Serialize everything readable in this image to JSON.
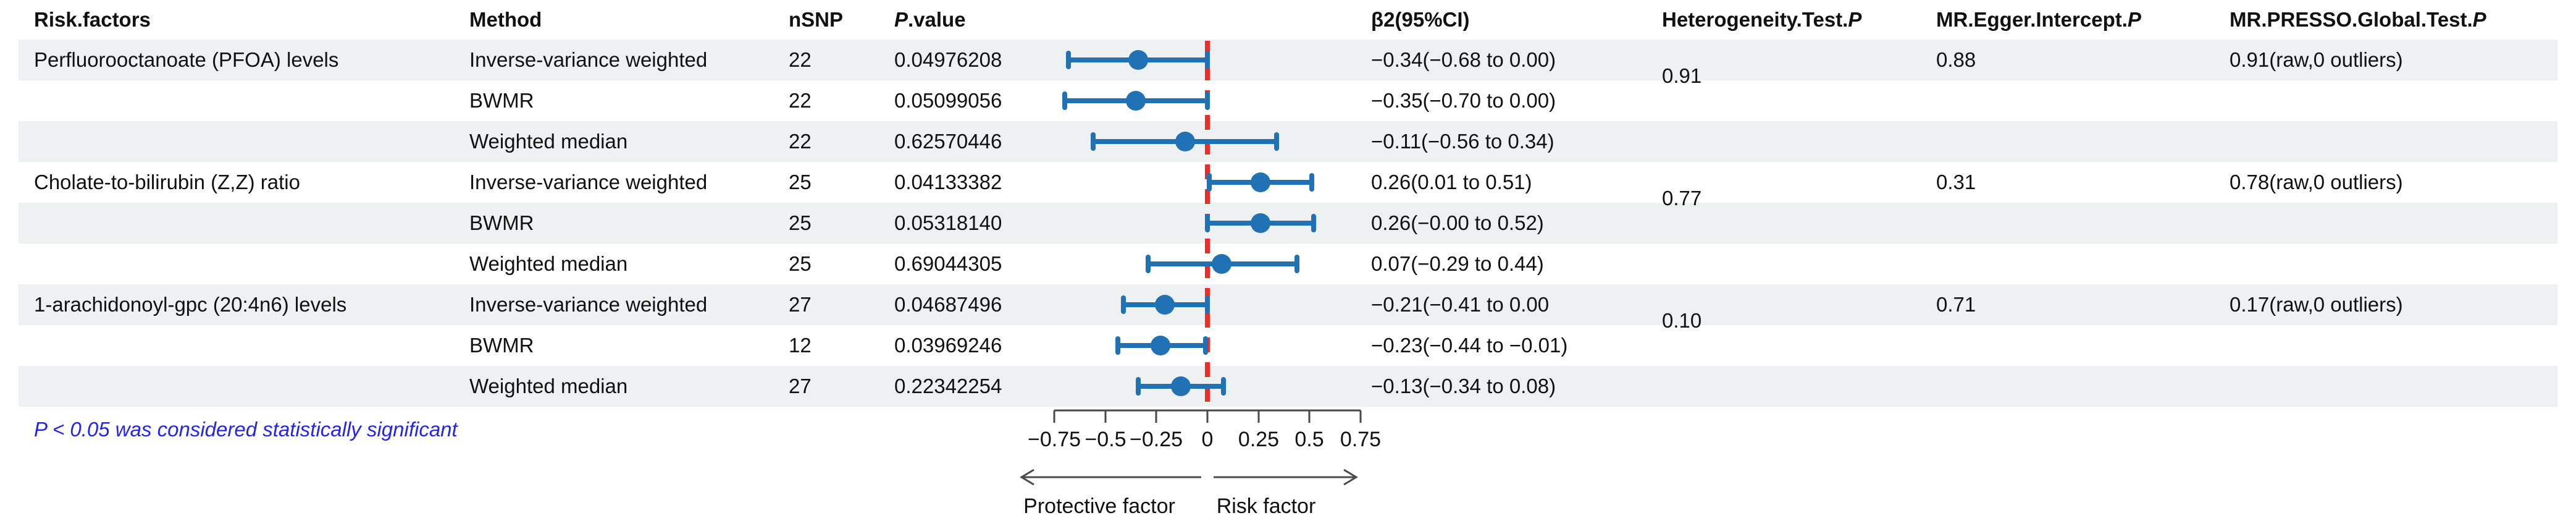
{
  "headers": {
    "risk_factors": "Risk.factors",
    "method": "Method",
    "nsnp": "nSNP",
    "p_value": {
      "italic": "P",
      "rest": ".value"
    },
    "beta_ci": "β2(95%CI)",
    "heterogeneity": {
      "rest": "Heterogeneity.Test.",
      "italic": "P"
    },
    "egger": {
      "rest": "MR.Egger.Intercept.",
      "italic": "P"
    },
    "presso": {
      "rest": "MR.PRESSO.Global.Test.",
      "italic": "P"
    }
  },
  "groups": [
    {
      "risk_factor": "Perfluorooctanoate (PFOA) levels",
      "heterogeneity_p": "0.91",
      "egger_intercept_p": "0.88",
      "presso_global_p": "0.91(raw,0 outliers)",
      "rows": [
        {
          "method": "Inverse-variance weighted",
          "nsnp": "22",
          "p_value": "0.04976208",
          "beta_ci": "−0.34(−0.68 to 0.00)"
        },
        {
          "method": "BWMR",
          "nsnp": "22",
          "p_value": "0.05099056",
          "beta_ci": "−0.35(−0.70 to 0.00)"
        },
        {
          "method": "Weighted median",
          "nsnp": "22",
          "p_value": "0.62570446",
          "beta_ci": "−0.11(−0.56 to 0.34)"
        }
      ]
    },
    {
      "risk_factor": "Cholate-to-bilirubin (Z,Z) ratio",
      "heterogeneity_p": "0.77",
      "egger_intercept_p": "0.31",
      "presso_global_p": "0.78(raw,0 outliers)",
      "rows": [
        {
          "method": "Inverse-variance weighted",
          "nsnp": "25",
          "p_value": "0.04133382",
          "beta_ci": "0.26(0.01 to 0.51)"
        },
        {
          "method": "BWMR",
          "nsnp": "25",
          "p_value": "0.05318140",
          "beta_ci": "0.26(−0.00 to 0.52)"
        },
        {
          "method": "Weighted median",
          "nsnp": "25",
          "p_value": "0.69044305",
          "beta_ci": "0.07(−0.29 to 0.44)"
        }
      ]
    },
    {
      "risk_factor": "1-arachidonoyl-gpc (20:4n6) levels",
      "heterogeneity_p": "0.10",
      "egger_intercept_p": "0.71",
      "presso_global_p": "0.17(raw,0 outliers)",
      "rows": [
        {
          "method": "Inverse-variance weighted",
          "nsnp": "27",
          "p_value": "0.04687496",
          "beta_ci": "−0.21(−0.41 to 0.00"
        },
        {
          "method": "BWMR",
          "nsnp": "12",
          "p_value": "0.03969246",
          "beta_ci": "−0.23(−0.44 to −0.01)"
        },
        {
          "method": "Weighted median",
          "nsnp": "27",
          "p_value": "0.22342254",
          "beta_ci": "−0.13(−0.34 to 0.08)"
        }
      ]
    }
  ],
  "chart_data": {
    "type": "scatter",
    "chart_kind": "forest-plot with 95% CI error bars",
    "x_axis": {
      "tick_values": [
        -0.75,
        -0.5,
        -0.25,
        0,
        0.25,
        0.5,
        0.75
      ],
      "tick_labels": [
        "−0.75",
        "−0.5",
        "−0.25",
        "0",
        "0.25",
        "0.5",
        "0.75"
      ],
      "range": [
        -0.75,
        0.75
      ],
      "reference_line_x": 0,
      "direction_labels": {
        "left": "Protective factor",
        "right": "Risk factor"
      }
    },
    "points": [
      {
        "risk_factor": "Perfluorooctanoate (PFOA) levels",
        "method": "Inverse-variance weighted",
        "beta": -0.34,
        "lo": -0.68,
        "hi": 0.0
      },
      {
        "risk_factor": "Perfluorooctanoate (PFOA) levels",
        "method": "BWMR",
        "beta": -0.35,
        "lo": -0.7,
        "hi": 0.0
      },
      {
        "risk_factor": "Perfluorooctanoate (PFOA) levels",
        "method": "Weighted median",
        "beta": -0.11,
        "lo": -0.56,
        "hi": 0.34
      },
      {
        "risk_factor": "Cholate-to-bilirubin (Z,Z) ratio",
        "method": "Inverse-variance weighted",
        "beta": 0.26,
        "lo": 0.01,
        "hi": 0.51
      },
      {
        "risk_factor": "Cholate-to-bilirubin (Z,Z) ratio",
        "method": "BWMR",
        "beta": 0.26,
        "lo": 0.0,
        "hi": 0.52
      },
      {
        "risk_factor": "Cholate-to-bilirubin (Z,Z) ratio",
        "method": "Weighted median",
        "beta": 0.07,
        "lo": -0.29,
        "hi": 0.44
      },
      {
        "risk_factor": "1-arachidonoyl-gpc (20:4n6) levels",
        "method": "Inverse-variance weighted",
        "beta": -0.21,
        "lo": -0.41,
        "hi": 0.0
      },
      {
        "risk_factor": "1-arachidonoyl-gpc (20:4n6) levels",
        "method": "BWMR",
        "beta": -0.23,
        "lo": -0.44,
        "hi": -0.01
      },
      {
        "risk_factor": "1-arachidonoyl-gpc (20:4n6) levels",
        "method": "Weighted median",
        "beta": -0.13,
        "lo": -0.34,
        "hi": 0.08
      }
    ]
  },
  "footnote": "P < 0.05 was considered statistically significant",
  "colors": {
    "marker": "#2171b5",
    "reference_line": "#e92f28",
    "stripe": "#edf1f1",
    "footnote": "#2424f0",
    "axis": "#4a4a4a"
  }
}
